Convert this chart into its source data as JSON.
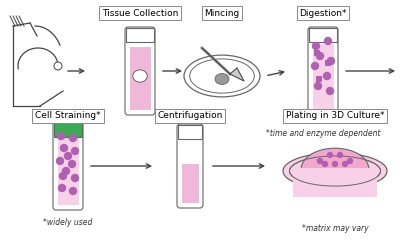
{
  "bg_color": "#ffffff",
  "pink_fill": "#f2a8cc",
  "pink_light": "#f8d0e8",
  "pink_tube": "#f0b8d8",
  "green_cap": "#3aaa55",
  "outline": "#666666",
  "dark": "#444444",
  "dot_color": "#b060b0",
  "dot_sq_color": "#9040a0",
  "gray_tissue": "#aaaaaa",
  "arrow_color": "#444444",
  "fs_label": 6.5,
  "fs_note": 5.5,
  "labels": {
    "tissue": "Tissue Collection",
    "mincing": "Mincing",
    "digestion": "Digestion*",
    "straining": "Cell Straining*",
    "centrifugation": "Centrifugation",
    "plating": "Plating in 3D Culture*"
  },
  "notes": {
    "digestion": "*time and enzyme dependent",
    "straining": "*widely used",
    "plating": "*matrix may vary"
  }
}
